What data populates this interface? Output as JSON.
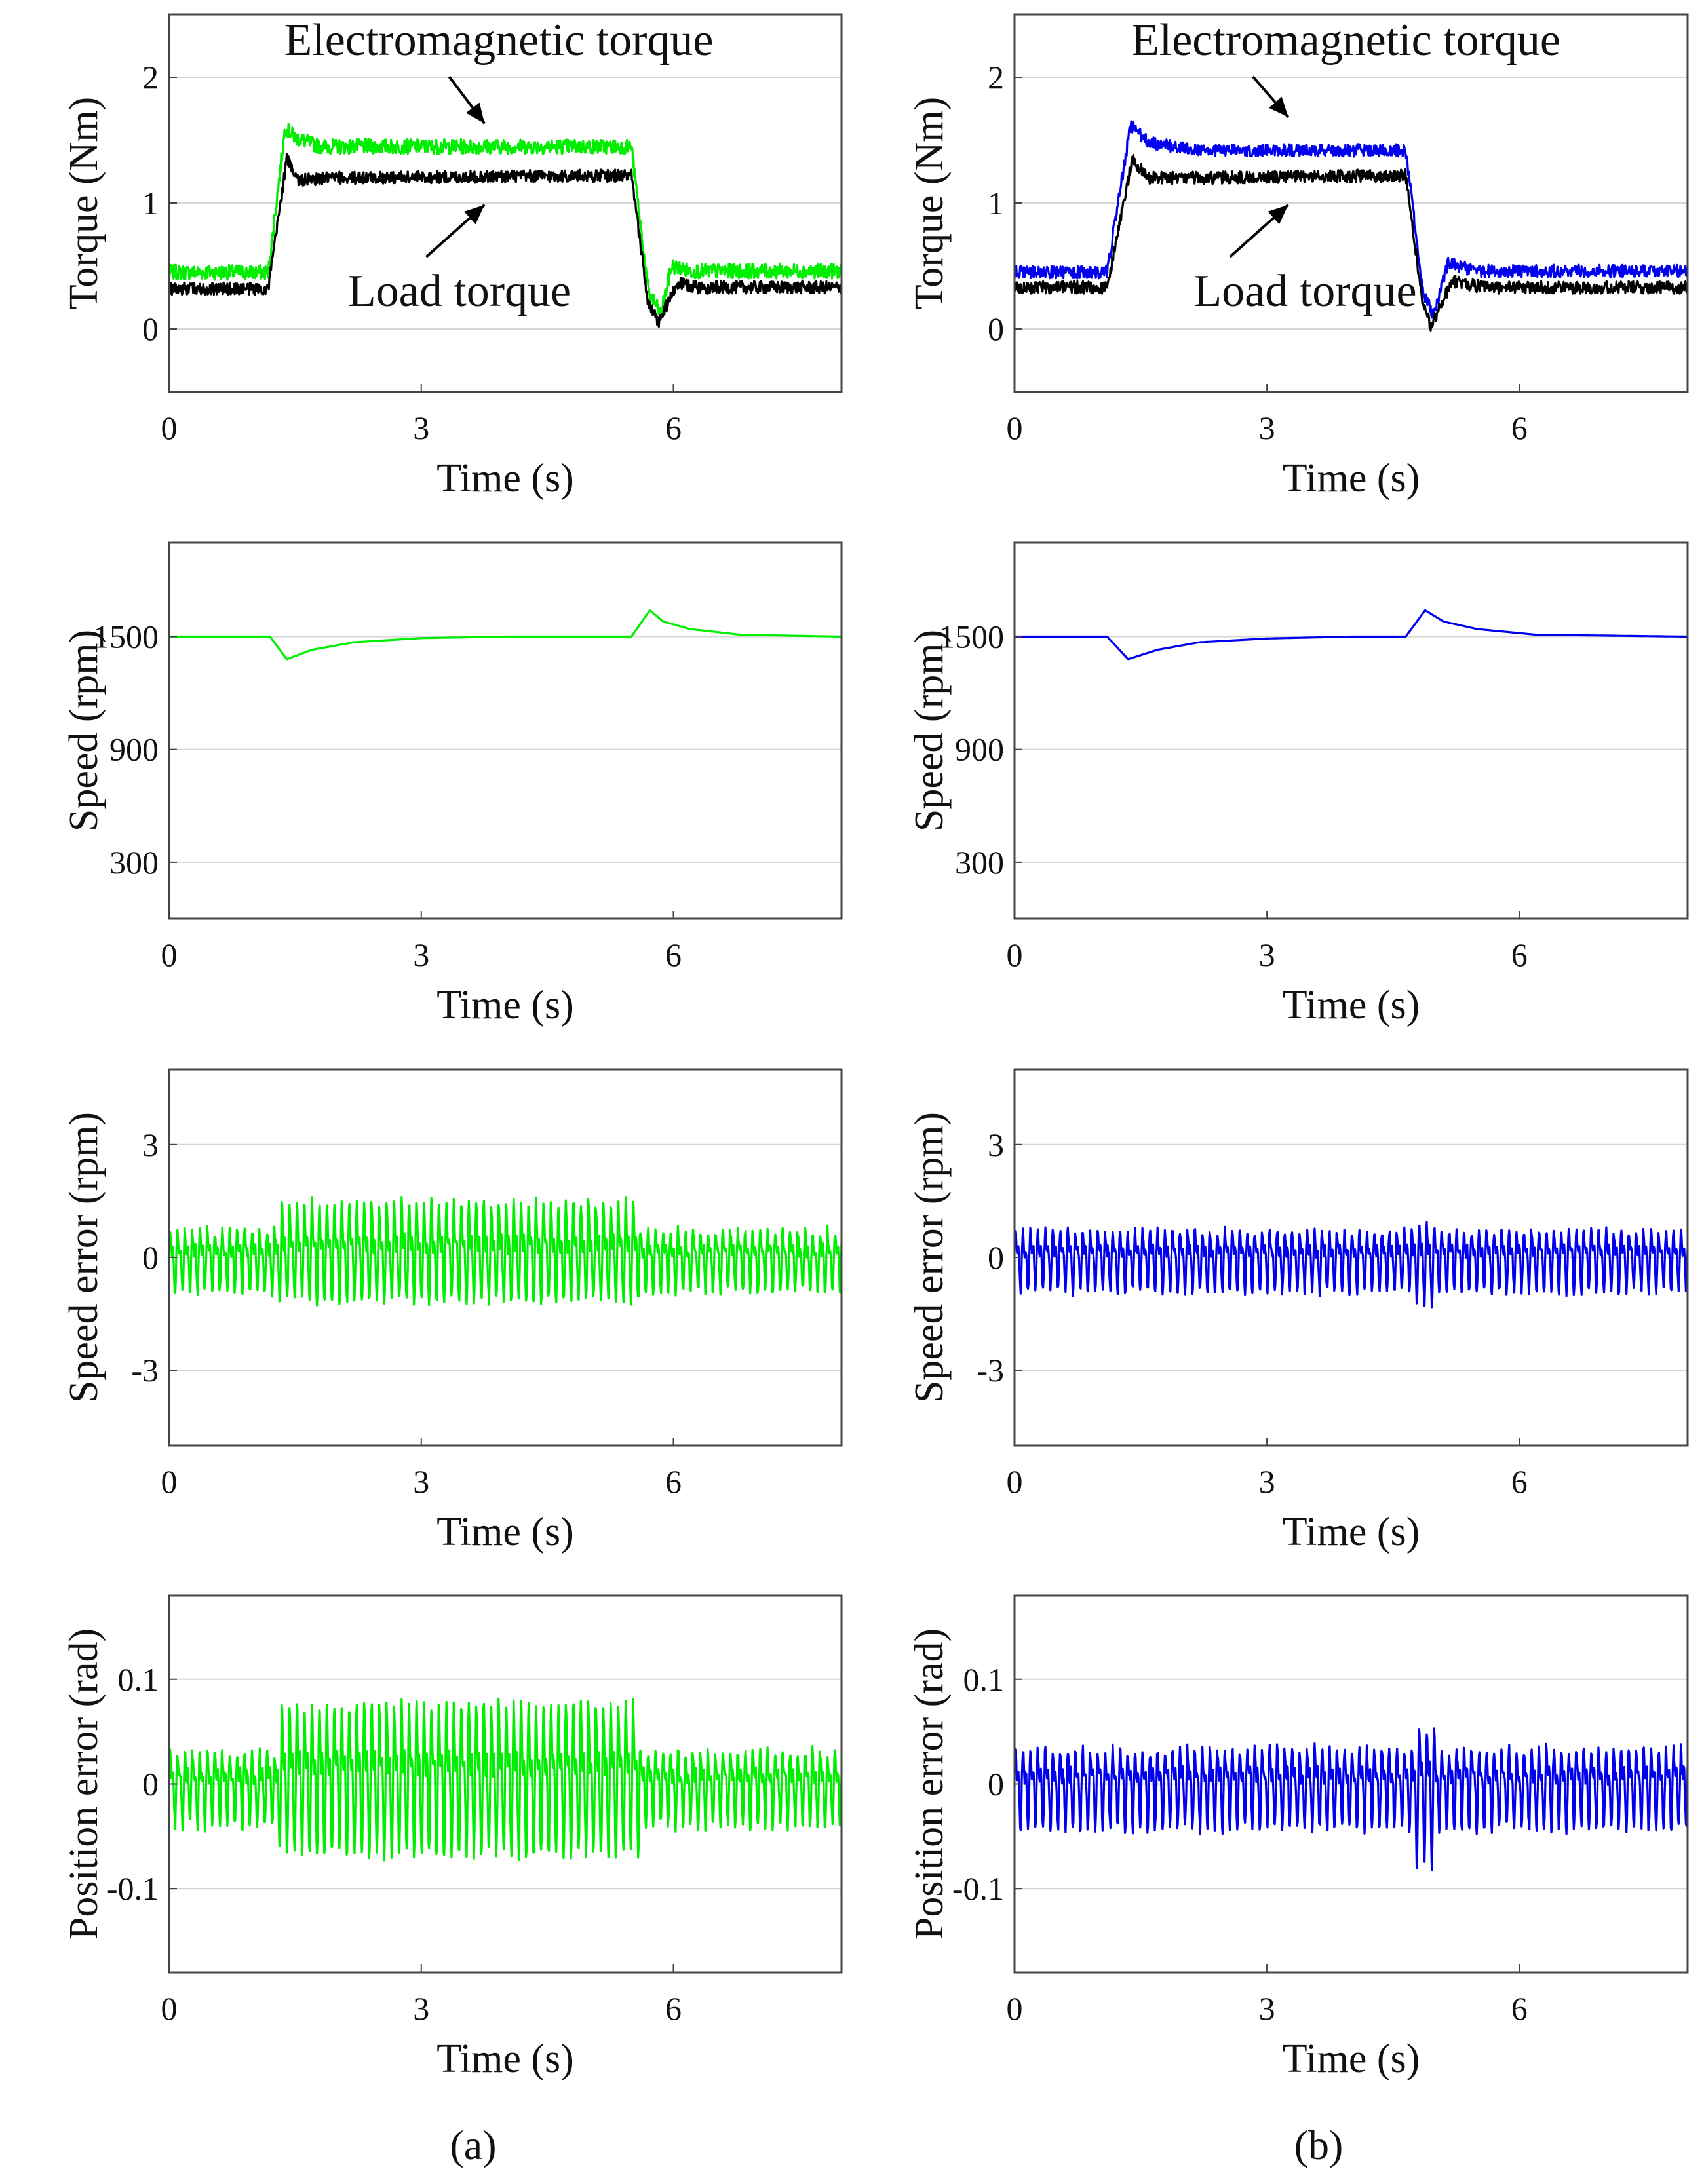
{
  "chart_data": [
    {
      "type": "line",
      "id": "a-torque",
      "column": "a",
      "xlabel": "Time (s)",
      "ylabel": "Torque (Nm)",
      "xlim": [
        0,
        8
      ],
      "ylim": [
        -0.5,
        2.5
      ],
      "xticks": [
        "0",
        "3",
        "6"
      ],
      "yticks": [
        "0",
        "1",
        "2"
      ],
      "series": [
        {
          "name": "Electromagnetic torque",
          "color": "#00ee00",
          "noise": 0.06,
          "x": [
            0,
            1.18,
            1.38,
            1.5,
            1.8,
            5.5,
            5.7,
            5.85,
            5.98,
            6.2,
            8
          ],
          "values": [
            0.45,
            0.45,
            1.6,
            1.52,
            1.45,
            1.45,
            0.3,
            0.12,
            0.5,
            0.46,
            0.46
          ]
        },
        {
          "name": "Load torque",
          "color": "#000000",
          "noise": 0.05,
          "x": [
            0,
            1.18,
            1.4,
            1.55,
            1.9,
            5.5,
            5.7,
            5.82,
            6.05,
            6.3,
            8
          ],
          "values": [
            0.32,
            0.32,
            1.35,
            1.18,
            1.2,
            1.22,
            0.2,
            0.05,
            0.36,
            0.33,
            0.33
          ]
        }
      ],
      "annotations": [
        {
          "text": "Electromagnetic torque",
          "points_to": [
            3.8,
            1.55
          ]
        },
        {
          "text": "Load torque",
          "points_to": [
            3.8,
            1.08
          ]
        }
      ]
    },
    {
      "type": "line",
      "id": "b-torque",
      "column": "b",
      "xlabel": "Time (s)",
      "ylabel": "Torque (Nm)",
      "xlim": [
        0,
        8
      ],
      "ylim": [
        -0.5,
        2.5
      ],
      "xticks": [
        "0",
        "3",
        "6"
      ],
      "yticks": [
        "0",
        "1",
        "2"
      ],
      "series": [
        {
          "name": "Electromagnetic torque",
          "color": "#0000ee",
          "noise": 0.05,
          "x": [
            0,
            1.1,
            1.38,
            1.6,
            2.2,
            4.65,
            4.85,
            4.98,
            5.15,
            5.5,
            8
          ],
          "values": [
            0.45,
            0.45,
            1.62,
            1.48,
            1.42,
            1.42,
            0.3,
            0.1,
            0.52,
            0.46,
            0.46
          ]
        },
        {
          "name": "Load torque",
          "color": "#000000",
          "noise": 0.05,
          "x": [
            0,
            1.1,
            1.4,
            1.6,
            2.2,
            4.65,
            4.85,
            4.95,
            5.2,
            5.6,
            8
          ],
          "values": [
            0.33,
            0.33,
            1.35,
            1.2,
            1.2,
            1.22,
            0.2,
            0.02,
            0.38,
            0.33,
            0.33
          ]
        }
      ],
      "annotations": [
        {
          "text": "Electromagnetic torque",
          "points_to": [
            3.3,
            1.6
          ]
        },
        {
          "text": "Load torque",
          "points_to": [
            3.3,
            1.08
          ]
        }
      ]
    },
    {
      "type": "line",
      "id": "a-speed",
      "column": "a",
      "xlabel": "Time (s)",
      "ylabel": "Speed (rpm)",
      "xlim": [
        0,
        8
      ],
      "ylim": [
        0,
        2000
      ],
      "xticks": [
        "0",
        "3",
        "6"
      ],
      "yticks": [
        "300",
        "900",
        "1500"
      ],
      "series": [
        {
          "name": "Speed",
          "color": "#00ee00",
          "noise": 0,
          "x": [
            0,
            1.2,
            1.4,
            1.7,
            2.2,
            3.0,
            4.0,
            5.5,
            5.72,
            5.88,
            6.2,
            6.8,
            8
          ],
          "values": [
            1500,
            1500,
            1380,
            1430,
            1470,
            1492,
            1500,
            1500,
            1640,
            1580,
            1540,
            1510,
            1500
          ]
        }
      ]
    },
    {
      "type": "line",
      "id": "b-speed",
      "column": "b",
      "xlabel": "Time (s)",
      "ylabel": "Speed (rpm)",
      "xlim": [
        0,
        8
      ],
      "ylim": [
        0,
        2000
      ],
      "xticks": [
        "0",
        "3",
        "6"
      ],
      "yticks": [
        "300",
        "900",
        "1500"
      ],
      "series": [
        {
          "name": "Speed",
          "color": "#0000ee",
          "noise": 0,
          "x": [
            0,
            1.1,
            1.35,
            1.7,
            2.2,
            3.0,
            4.0,
            4.65,
            4.88,
            5.1,
            5.5,
            6.2,
            8
          ],
          "values": [
            1500,
            1500,
            1380,
            1430,
            1470,
            1490,
            1500,
            1500,
            1640,
            1580,
            1540,
            1510,
            1500
          ]
        }
      ]
    },
    {
      "type": "line",
      "id": "a-speederr",
      "column": "a",
      "xlabel": "Time (s)",
      "ylabel": "Speed error (rpm)",
      "xlim": [
        0,
        8
      ],
      "ylim": [
        -5,
        5
      ],
      "xticks": [
        "0",
        "3",
        "6"
      ],
      "yticks": [
        "-3",
        "0",
        "3"
      ],
      "series": [
        {
          "name": "Speed error",
          "color": "#00ee00",
          "noise": 0.15,
          "oscillation": {
            "cycles": 90,
            "amplitude": 0.95,
            "burst_from": 1.3,
            "burst_to": 5.6,
            "burst_amplitude": 2.0,
            "burst_neg": 1.2
          },
          "x": [
            0,
            8
          ],
          "values": [
            0,
            0
          ]
        }
      ]
    },
    {
      "type": "line",
      "id": "b-speederr",
      "column": "b",
      "xlabel": "Time (s)",
      "ylabel": "Speed error (rpm)",
      "xlim": [
        0,
        8
      ],
      "ylim": [
        -5,
        5
      ],
      "xticks": [
        "0",
        "3",
        "6"
      ],
      "yticks": [
        "-3",
        "0",
        "3"
      ],
      "series": [
        {
          "name": "Speed error",
          "color": "#0000ee",
          "noise": 0.12,
          "oscillation": {
            "cycles": 90,
            "amplitude": 0.95,
            "burst_from": 4.75,
            "burst_to": 5.0,
            "burst_amplitude": 1.2,
            "burst_neg": 1.3
          },
          "x": [
            0,
            8
          ],
          "values": [
            0,
            0
          ]
        }
      ]
    },
    {
      "type": "line",
      "id": "a-poserr",
      "column": "a",
      "xlabel": "Time (s)",
      "ylabel": "Position error (rad)",
      "xlim": [
        0,
        8
      ],
      "ylim": [
        -0.18,
        0.18
      ],
      "xticks": [
        "0",
        "3",
        "6"
      ],
      "yticks": [
        "-0.1",
        "0",
        "0.1"
      ],
      "series": [
        {
          "name": "Position error",
          "color": "#00ee00",
          "noise": 0.006,
          "oscillation": {
            "cycles": 90,
            "amplitude": 0.042,
            "burst_from": 1.3,
            "burst_to": 5.6,
            "burst_amplitude": 0.105,
            "burst_neg": 0.07
          },
          "x": [
            0,
            8
          ],
          "values": [
            0,
            0
          ]
        }
      ]
    },
    {
      "type": "line",
      "id": "b-poserr",
      "column": "b",
      "xlabel": "Time (s)",
      "ylabel": "Position error (rad)",
      "xlim": [
        0,
        8
      ],
      "ylim": [
        -0.18,
        0.18
      ],
      "xticks": [
        "0",
        "3",
        "6"
      ],
      "yticks": [
        "-0.1",
        "0",
        "0.1"
      ],
      "series": [
        {
          "name": "Position error",
          "color": "#0000ee",
          "noise": 0.006,
          "oscillation": {
            "cycles": 90,
            "amplitude": 0.045,
            "burst_from": 4.75,
            "burst_to": 5.0,
            "burst_amplitude": 0.07,
            "burst_neg": 0.08
          },
          "x": [
            0,
            8
          ],
          "values": [
            0,
            0
          ]
        }
      ]
    }
  ],
  "captions": {
    "a": "(a)",
    "b": "(b)"
  }
}
